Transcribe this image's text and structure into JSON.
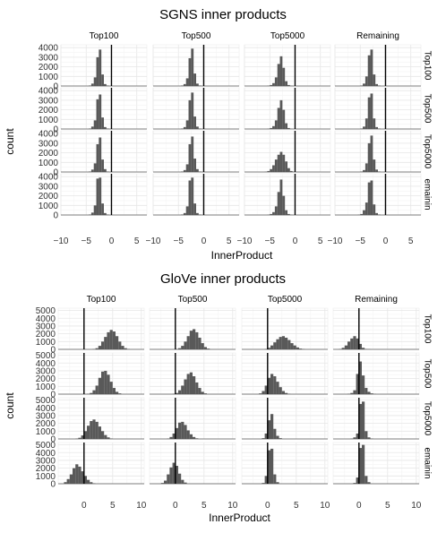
{
  "chart_data": [
    {
      "type": "histogram-facet-grid",
      "title": "SGNS inner products",
      "xlabel": "InnerProduct",
      "ylabel": "count",
      "col_labels": [
        "Top100",
        "Top500",
        "Top5000",
        "Remaining"
      ],
      "row_labels": [
        "Top100",
        "Top500",
        "Top5000",
        "Remaining"
      ],
      "row_labels_shown": [
        "Top100",
        "Top500",
        "Top5000",
        "emainin"
      ],
      "xlim": [
        -10,
        7
      ],
      "ylim": [
        0,
        4300
      ],
      "x_ticks": [
        -10,
        -5,
        0,
        5
      ],
      "x_tick_labels": [
        "−10",
        "−5",
        "0",
        "5"
      ],
      "y_ticks": [
        0,
        1000,
        2000,
        3000,
        4000
      ],
      "y_tick_labels": [
        "0",
        "1000",
        "2000",
        "3000",
        "4000"
      ],
      "vline_x": 0,
      "bin_width": 0.5,
      "panels": [
        [
          {
            "bin_start": -4.5,
            "counts": [
              50,
              250,
              900,
              3000,
              3800,
              1200,
              200,
              50
            ]
          },
          {
            "bin_start": -4.5,
            "counts": [
              50,
              200,
              800,
              2900,
              3900,
              1300,
              250,
              50
            ]
          },
          {
            "bin_start": -5.5,
            "counts": [
              30,
              100,
              300,
              900,
              2300,
              3100,
              1900,
              500,
              100,
              30
            ]
          },
          {
            "bin_start": -5,
            "counts": [
              50,
              250,
              1000,
              3200,
              3800,
              1200,
              200,
              50
            ]
          }
        ],
        [
          {
            "bin_start": -4.5,
            "counts": [
              50,
              250,
              900,
              3100,
              3600,
              1200,
              200,
              50
            ]
          },
          {
            "bin_start": -4.5,
            "counts": [
              50,
              200,
              900,
              3000,
              3800,
              1300,
              250,
              50
            ]
          },
          {
            "bin_start": -5.5,
            "counts": [
              30,
              100,
              300,
              900,
              2200,
              3000,
              2000,
              600,
              100,
              30
            ]
          },
          {
            "bin_start": -5,
            "counts": [
              50,
              250,
              1100,
              3300,
              3700,
              1100,
              200,
              50
            ]
          }
        ],
        [
          {
            "bin_start": -4.5,
            "counts": [
              50,
              250,
              900,
              2900,
              3600,
              1300,
              300,
              50
            ]
          },
          {
            "bin_start": -4.5,
            "counts": [
              50,
              200,
              800,
              2900,
              3700,
              1400,
              300,
              50
            ]
          },
          {
            "bin_start": -6,
            "counts": [
              30,
              100,
              300,
              700,
              1300,
              1800,
              2100,
              1800,
              1100,
              400,
              100,
              30
            ]
          },
          {
            "bin_start": -5,
            "counts": [
              50,
              200,
              900,
              3000,
              3800,
              1300,
              250,
              50
            ]
          }
        ],
        [
          {
            "bin_start": -4.5,
            "counts": [
              50,
              250,
              1000,
              3800,
              3900,
              1200,
              200,
              50
            ]
          },
          {
            "bin_start": -4.5,
            "counts": [
              50,
              200,
              900,
              3600,
              3900,
              1200,
              200,
              50
            ]
          },
          {
            "bin_start": -5.5,
            "counts": [
              30,
              100,
              300,
              900,
              2400,
              3700,
              2000,
              500,
              100,
              30
            ]
          },
          {
            "bin_start": -5.5,
            "counts": [
              30,
              100,
              500,
              1300,
              3400,
              3600,
              1100,
              200,
              50
            ]
          }
        ]
      ]
    },
    {
      "type": "histogram-facet-grid",
      "title": "GloVe inner products",
      "xlabel": "InnerProduct",
      "ylabel": "count",
      "col_labels": [
        "Top100",
        "Top500",
        "Top5000",
        "Remaining"
      ],
      "row_labels": [
        "Top100",
        "Top500",
        "Top5000",
        "Remaining"
      ],
      "row_labels_shown": [
        "Top100",
        "Top500",
        "Top5000",
        "emainin"
      ],
      "xlim": [
        -4.5,
        10.5
      ],
      "ylim": [
        0,
        5300
      ],
      "x_ticks": [
        0,
        5,
        10
      ],
      "x_tick_labels": [
        "0",
        "5",
        "10"
      ],
      "y_ticks": [
        0,
        1000,
        2000,
        3000,
        4000,
        5000
      ],
      "y_tick_labels": [
        "0",
        "1000",
        "2000",
        "3000",
        "4000",
        "5000"
      ],
      "vline_x": 0,
      "bin_width": 0.5,
      "panels": [
        [
          {
            "bin_start": 1.5,
            "counts": [
              50,
              150,
              450,
              1000,
              1600,
              2200,
              2500,
              2300,
              1700,
              1000,
              450,
              150,
              50
            ]
          },
          {
            "bin_start": 0,
            "counts": [
              50,
              150,
              450,
              1000,
              1700,
              2400,
              2600,
              2200,
              1500,
              800,
              300,
              100
            ]
          },
          {
            "bin_start": -0.5,
            "counts": [
              50,
              200,
              500,
              900,
              1300,
              1600,
              1700,
              1500,
              1200,
              800,
              500,
              250,
              100,
              50
            ]
          },
          {
            "bin_start": -3.5,
            "counts": [
              50,
              200,
              500,
              1000,
              1400,
              1700,
              1400,
              700,
              200,
              50,
              30
            ]
          }
        ],
        [
          {
            "bin_start": 0.5,
            "counts": [
              50,
              150,
              500,
              1100,
              2100,
              2900,
              3000,
              2500,
              1600,
              800,
              300,
              100
            ]
          },
          {
            "bin_start": -0.5,
            "counts": [
              50,
              150,
              500,
              1100,
              1900,
              2600,
              2800,
              2300,
              1500,
              800,
              300,
              100
            ]
          },
          {
            "bin_start": -1.5,
            "counts": [
              100,
              400,
              1100,
              2100,
              2600,
              2300,
              1600,
              900,
              400,
              150,
              50
            ]
          },
          {
            "bin_start": -2,
            "counts": [
              50,
              150,
              500,
              2600,
              4200,
              2400,
              800,
              300,
              100,
              30
            ]
          }
        ],
        [
          {
            "bin_start": -1.5,
            "counts": [
              50,
              150,
              450,
              1000,
              1700,
              2300,
              2500,
              2200,
              1600,
              1000,
              500,
              200,
              60
            ]
          },
          {
            "bin_start": -1.5,
            "counts": [
              50,
              250,
              700,
              1400,
              2100,
              2200,
              1800,
              1100,
              600,
              250,
              80
            ]
          },
          {
            "bin_start": -1,
            "counts": [
              100,
              700,
              2400,
              3200,
              1300,
              400,
              100
            ]
          },
          {
            "bin_start": -1.5,
            "counts": [
              50,
              200,
              700,
              4500,
              4800,
              1000,
              200,
              50
            ]
          }
        ],
        [
          {
            "bin_start": -3.5,
            "counts": [
              200,
              600,
              1200,
              2000,
              2500,
              2200,
              1600,
              1000,
              500,
              200,
              60
            ]
          },
          {
            "bin_start": -2.5,
            "counts": [
              100,
              400,
              1200,
              2100,
              2700,
              2300,
              1300,
              500,
              150
            ]
          },
          {
            "bin_start": -1,
            "counts": [
              100,
              1000,
              4300,
              4500,
              1200,
              200
            ]
          },
          {
            "bin_start": -1,
            "counts": [
              100,
              800,
              4600,
              5000,
              1000,
              200
            ]
          }
        ]
      ]
    }
  ]
}
